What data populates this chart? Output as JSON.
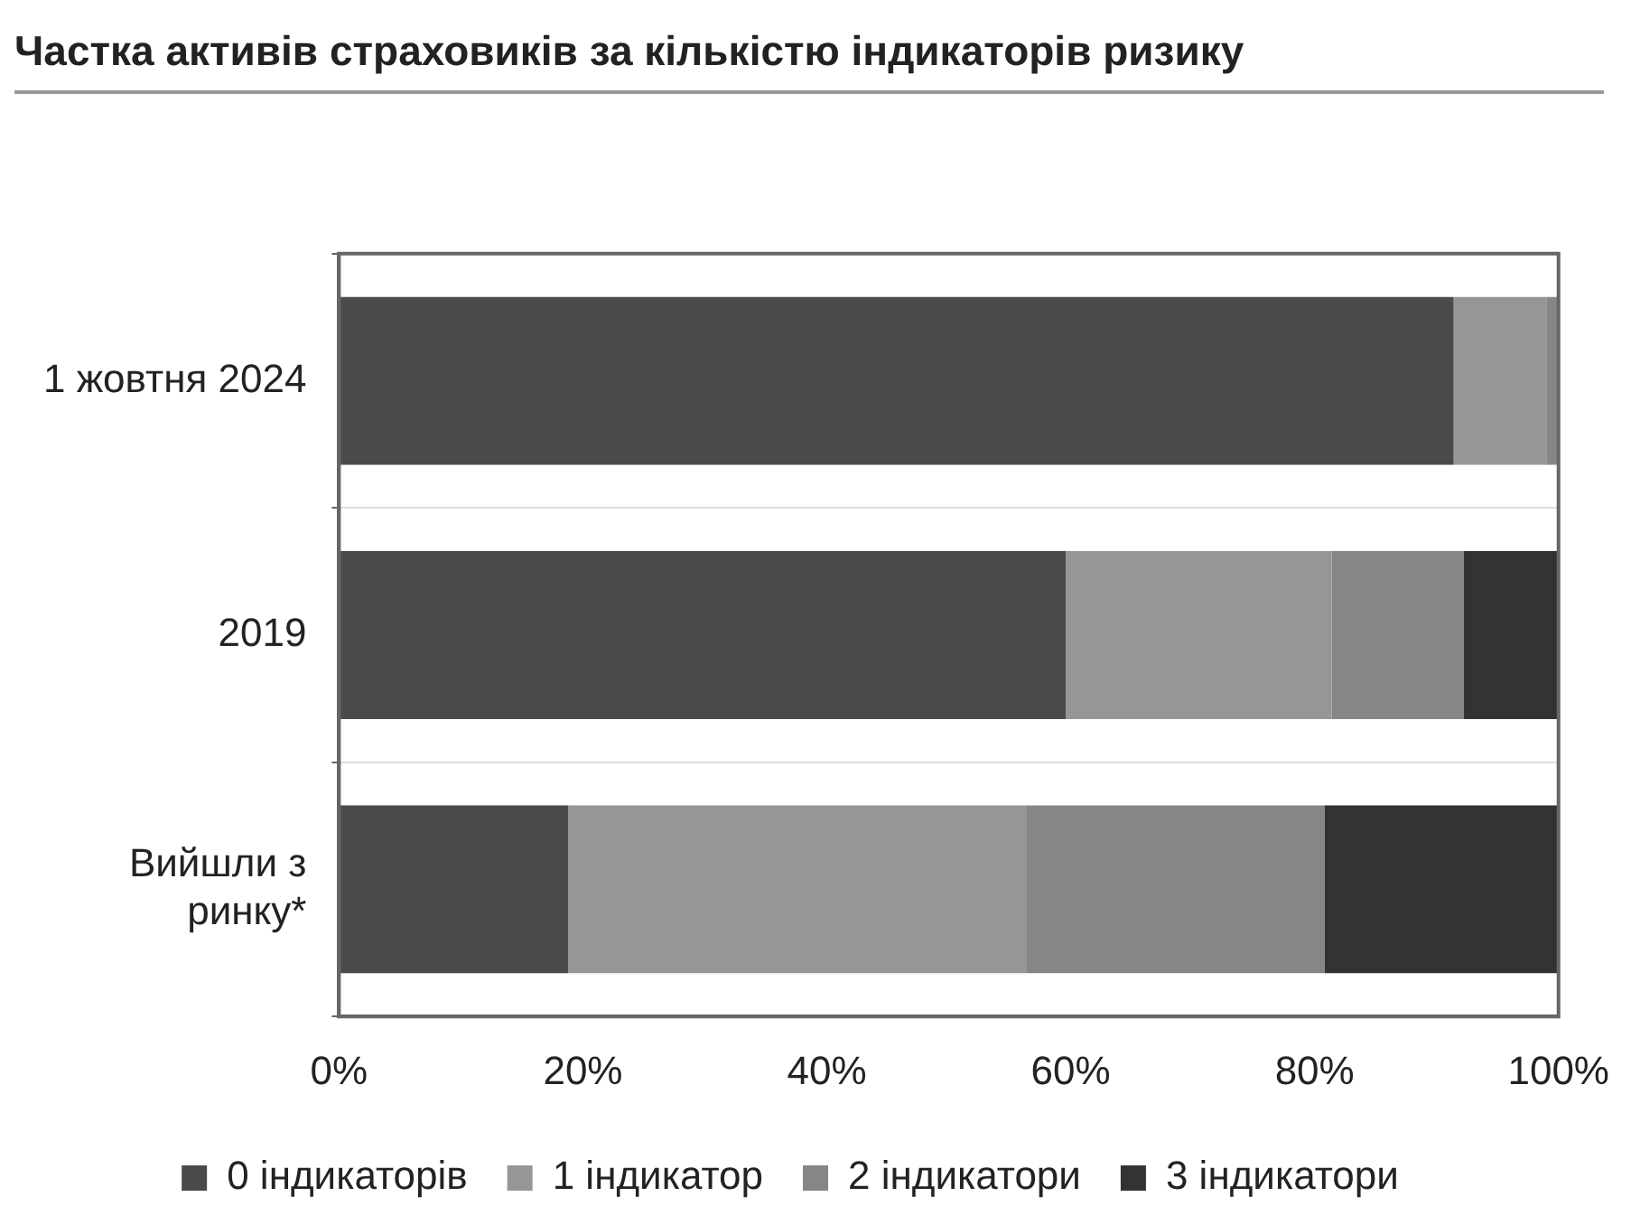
{
  "chart_data": {
    "type": "bar",
    "orientation": "horizontal",
    "stacked": true,
    "title": "Частка активів страховиків за кількістю індикаторів ризику",
    "categories": [
      "1 жовтня 2024",
      "2019",
      "Вийшли з ринку*"
    ],
    "series": [
      {
        "name": "0 індикаторів",
        "color": "#4a4a4a",
        "values": [
          91.4,
          59.6,
          18.8
        ]
      },
      {
        "name": "1 індикатор",
        "color": "#969696",
        "values": [
          7.6,
          21.8,
          37.6
        ]
      },
      {
        "name": "2 індикатори",
        "color": "#868686",
        "values": [
          1.0,
          10.8,
          24.4
        ]
      },
      {
        "name": "3 індикатори",
        "color": "#333333",
        "values": [
          0,
          7.8,
          19.2
        ]
      }
    ],
    "xlim": [
      0,
      100
    ],
    "xticks": [
      {
        "value": 0,
        "label": "0%"
      },
      {
        "value": 20,
        "label": "20%"
      },
      {
        "value": 40,
        "label": "40%"
      },
      {
        "value": 60,
        "label": "60%"
      },
      {
        "value": 80,
        "label": "80%"
      },
      {
        "value": 100,
        "label": "100%"
      }
    ],
    "grid": "y",
    "legend": "bottom"
  }
}
